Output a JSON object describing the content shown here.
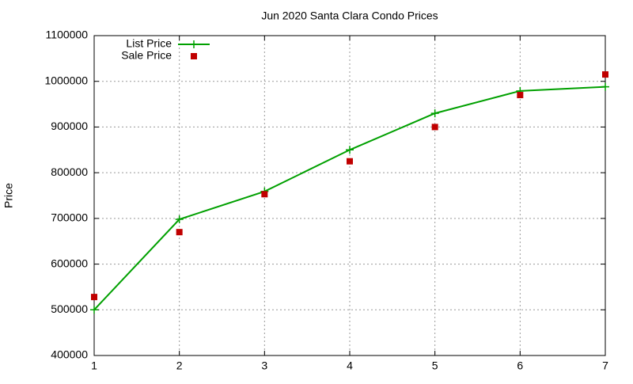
{
  "chart_data": {
    "type": "line",
    "title": "Jun 2020 Santa Clara Condo Prices",
    "y_label": "Price",
    "x": [
      1,
      2,
      3,
      4,
      5,
      6,
      7
    ],
    "series": [
      {
        "name": "List Price",
        "color": "#00a000",
        "style": "linespoints",
        "values": [
          500000,
          698000,
          759000,
          850000,
          930000,
          979000,
          988000
        ]
      },
      {
        "name": "Sale Price",
        "color": "#c00000",
        "style": "points",
        "values": [
          528000,
          670000,
          753000,
          825000,
          900000,
          970000,
          1015000
        ]
      }
    ],
    "xlim": [
      1,
      7
    ],
    "xticks": [
      1,
      2,
      3,
      4,
      5,
      6,
      7
    ],
    "ylim": [
      400000,
      1100000
    ],
    "yticks": [
      400000,
      500000,
      600000,
      700000,
      800000,
      900000,
      1000000,
      1100000
    ],
    "grid": true,
    "legend": "top-left"
  }
}
